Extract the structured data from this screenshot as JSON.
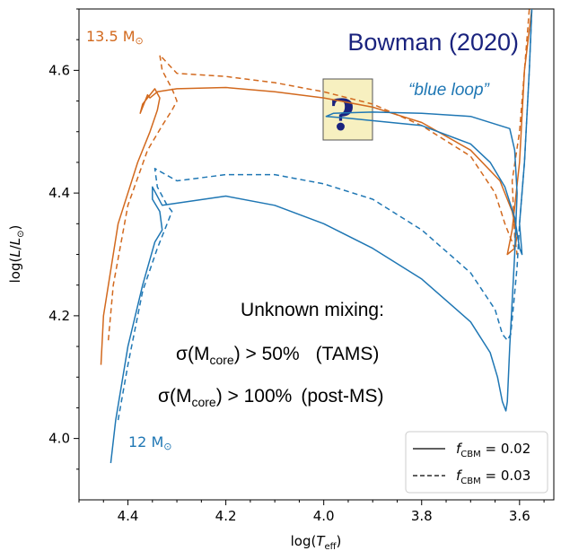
{
  "chart_data": {
    "type": "line",
    "xlabel": "log(T_eff)",
    "ylabel": "log(L/L⊙)",
    "x_reversed": true,
    "xlim": [
      4.5,
      3.53
    ],
    "ylim": [
      3.9,
      4.7
    ],
    "xticks": [
      4.4,
      4.2,
      4.0,
      3.8,
      3.6
    ],
    "xtick_labels": [
      "4.4",
      "4.2",
      "4.0",
      "3.8",
      "3.6"
    ],
    "yticks": [
      4.0,
      4.2,
      4.4,
      4.6
    ],
    "ytick_labels": [
      "4.0",
      "4.2",
      "4.4",
      "4.6"
    ],
    "colors": {
      "orange": "#d2691e",
      "blue": "#1f77b4",
      "title": "#1a237e"
    },
    "series": [
      {
        "mass": "13.5",
        "f_cbm": "0.02",
        "style": "solid",
        "color": "#d2691e",
        "x": [
          4.455,
          4.45,
          4.42,
          4.38,
          4.355,
          4.34,
          4.335,
          4.345,
          4.37,
          4.375,
          4.36,
          4.355,
          4.34,
          4.3,
          4.2,
          4.1,
          4.0,
          3.9,
          3.8,
          3.7,
          3.64,
          3.615,
          3.605,
          3.61,
          3.625,
          3.615,
          3.6,
          3.59,
          3.575
        ],
        "y": [
          4.12,
          4.2,
          4.35,
          4.45,
          4.5,
          4.535,
          4.555,
          4.57,
          4.545,
          4.53,
          4.56,
          4.555,
          4.565,
          4.57,
          4.572,
          4.565,
          4.555,
          4.54,
          4.515,
          4.47,
          4.42,
          4.37,
          4.33,
          4.31,
          4.3,
          4.34,
          4.45,
          4.6,
          4.72
        ]
      },
      {
        "mass": "13.5",
        "f_cbm": "0.03",
        "style": "dashed",
        "color": "#d2691e",
        "x": [
          4.44,
          4.43,
          4.4,
          4.36,
          4.33,
          4.31,
          4.3,
          4.31,
          4.33,
          4.335,
          4.3,
          4.2,
          4.1,
          4.0,
          3.9,
          3.8,
          3.7,
          3.65,
          3.63,
          3.615,
          3.605,
          3.61,
          3.615,
          3.6,
          3.59,
          3.58
        ],
        "y": [
          4.16,
          4.25,
          4.38,
          4.47,
          4.51,
          4.535,
          4.55,
          4.57,
          4.6,
          4.625,
          4.595,
          4.59,
          4.58,
          4.565,
          4.545,
          4.51,
          4.46,
          4.4,
          4.35,
          4.32,
          4.3,
          4.33,
          4.42,
          4.5,
          4.6,
          4.72
        ]
      },
      {
        "mass": "12",
        "f_cbm": "0.02",
        "style": "solid",
        "color": "#1f77b4",
        "x": [
          4.435,
          4.425,
          4.4,
          4.37,
          4.345,
          4.33,
          4.335,
          4.35,
          4.35,
          4.33,
          4.2,
          4.1,
          4.0,
          3.9,
          3.8,
          3.7,
          3.66,
          3.645,
          3.635,
          3.628,
          3.625,
          3.62,
          3.61,
          3.605,
          3.61,
          3.62,
          3.7,
          3.8,
          3.9,
          3.98,
          3.995,
          3.95,
          3.8,
          3.7,
          3.66,
          3.63,
          3.61,
          3.6,
          3.595,
          3.6,
          3.59,
          3.58,
          3.575
        ],
        "y": [
          3.96,
          4.03,
          4.15,
          4.25,
          4.32,
          4.34,
          4.37,
          4.39,
          4.41,
          4.38,
          4.395,
          4.38,
          4.35,
          4.31,
          4.26,
          4.19,
          4.14,
          4.1,
          4.06,
          4.045,
          4.06,
          4.15,
          4.3,
          4.4,
          4.47,
          4.505,
          4.525,
          4.53,
          4.532,
          4.53,
          4.525,
          4.522,
          4.51,
          4.48,
          4.45,
          4.41,
          4.36,
          4.31,
          4.3,
          4.35,
          4.45,
          4.6,
          4.72
        ]
      },
      {
        "mass": "12",
        "f_cbm": "0.03",
        "style": "dashed",
        "color": "#1f77b4",
        "x": [
          4.42,
          4.4,
          4.37,
          4.34,
          4.32,
          4.31,
          4.32,
          4.34,
          4.345,
          4.3,
          4.2,
          4.1,
          4.0,
          3.9,
          3.8,
          3.7,
          3.65,
          3.635,
          3.625,
          3.618,
          3.612,
          3.605,
          3.6,
          3.59,
          3.58,
          3.575
        ],
        "y": [
          4.03,
          4.12,
          4.24,
          4.31,
          4.35,
          4.37,
          4.38,
          4.41,
          4.44,
          4.42,
          4.43,
          4.43,
          4.415,
          4.39,
          4.34,
          4.27,
          4.21,
          4.17,
          4.16,
          4.17,
          4.22,
          4.28,
          4.35,
          4.45,
          4.6,
          4.72
        ]
      }
    ],
    "annotations": {
      "title": "Bowman (2020)",
      "blue_loop": "“blue loop”",
      "question": "?",
      "mass_high": "13.5 M",
      "mass_low": "12 M",
      "sun_symbol": "⊙",
      "unknown": "Unknown mixing:",
      "sigma_tams": "σ(M",
      "core": "core",
      "tams_val": ") > 50%",
      "tams_tag": "(TAMS)",
      "sigma_post": "σ(M",
      "post_val": ") > 100%",
      "post_tag": "(post-MS)"
    },
    "legend": {
      "placement": "bottom-right",
      "f_label": "f",
      "f_sub": "CBM",
      "items": [
        {
          "style": "solid",
          "value": " = 0.02"
        },
        {
          "style": "dashed",
          "value": " = 0.03"
        }
      ]
    }
  }
}
